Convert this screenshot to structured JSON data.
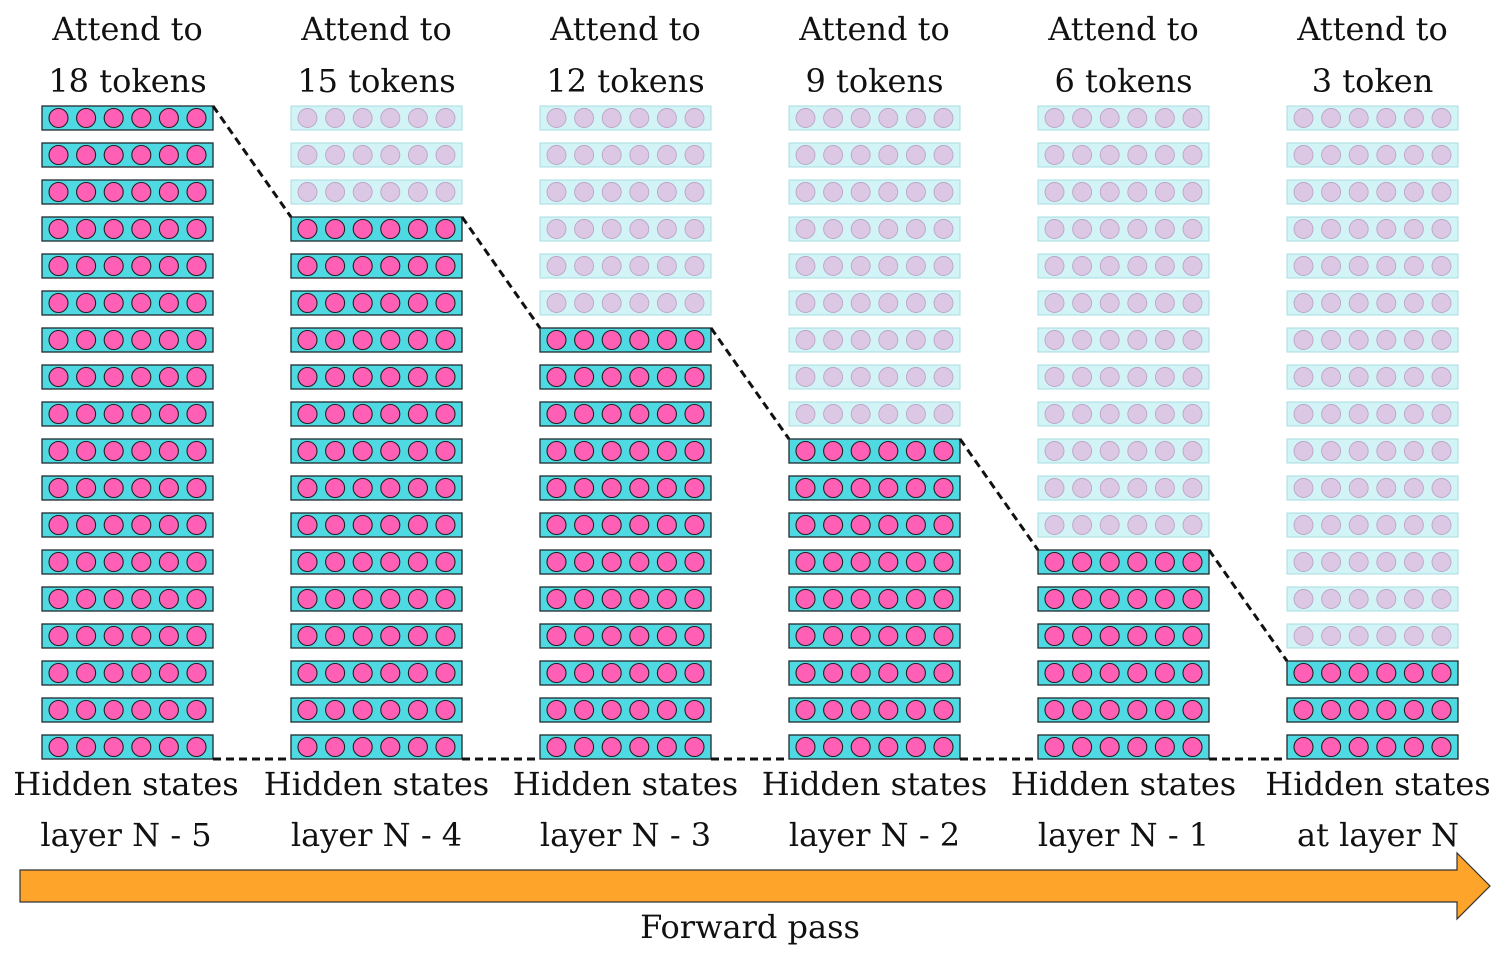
{
  "columns": [
    {
      "top_line1": "Attend to",
      "top_line2": "18 tokens",
      "bottom_line1": "Hidden states",
      "bottom_line2": "layer N - 5",
      "active_rows": 18
    },
    {
      "top_line1": "Attend to",
      "top_line2": "15 tokens",
      "bottom_line1": "Hidden states",
      "bottom_line2": "layer N - 4",
      "active_rows": 15
    },
    {
      "top_line1": "Attend to",
      "top_line2": "12 tokens",
      "bottom_line1": "Hidden states",
      "bottom_line2": "layer N - 3",
      "active_rows": 12
    },
    {
      "top_line1": "Attend to",
      "top_line2": "9 tokens",
      "bottom_line1": "Hidden states",
      "bottom_line2": "layer N - 2",
      "active_rows": 9
    },
    {
      "top_line1": "Attend to",
      "top_line2": "6 tokens",
      "bottom_line1": "Hidden states",
      "bottom_line2": "layer N - 1",
      "active_rows": 6
    },
    {
      "top_line1": "Attend to",
      "top_line2": "3 token",
      "bottom_line1": "Hidden states",
      "bottom_line2": "at layer N",
      "active_rows": 3
    }
  ],
  "total_rows": 18,
  "units_per_row": 6,
  "arrow_label": "Forward pass",
  "colors": {
    "active_box": "#4fd9e2",
    "active_unit": "#ff5fb4",
    "inactive_box": "#d3f4f6",
    "inactive_unit": "#dcc8e4",
    "arrow": "#ffa42a"
  }
}
